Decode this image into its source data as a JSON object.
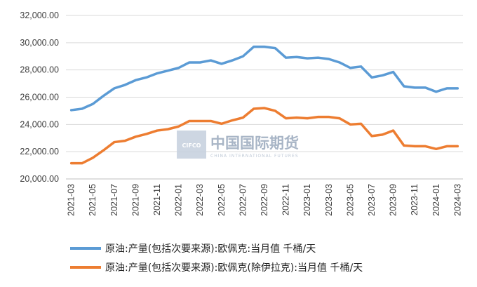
{
  "watermark": {
    "logo_text": "CIFCO",
    "name": "中国国际期货",
    "subtitle": "CHINA INTERNATIONAL FUTURES"
  },
  "chart_data": {
    "type": "line",
    "x": [
      "2021-03",
      "2021-04",
      "2021-05",
      "2021-06",
      "2021-07",
      "2021-08",
      "2021-09",
      "2021-10",
      "2021-11",
      "2021-12",
      "2022-01",
      "2022-02",
      "2022-03",
      "2022-04",
      "2022-05",
      "2022-06",
      "2022-07",
      "2022-08",
      "2022-09",
      "2022-10",
      "2022-11",
      "2022-12",
      "2023-01",
      "2023-02",
      "2023-03",
      "2023-04",
      "2023-05",
      "2023-06",
      "2023-07",
      "2023-08",
      "2023-09",
      "2023-10",
      "2023-11",
      "2023-12",
      "2024-01",
      "2024-02",
      "2024-03"
    ],
    "x_tick_labels": [
      "2021-03",
      "2021-05",
      "2021-07",
      "2021-09",
      "2021-11",
      "2022-01",
      "2022-03",
      "2022-05",
      "2022-07",
      "2022-09",
      "2022-11",
      "2023-01",
      "2023-03",
      "2023-05",
      "2023-07",
      "2023-09",
      "2023-11",
      "2024-01",
      "2024-03"
    ],
    "y_tick_labels": [
      "20,000.00",
      "22,000.00",
      "24,000.00",
      "26,000.00",
      "28,000.00",
      "30,000.00",
      "32,000.00"
    ],
    "ylim": [
      20000,
      32000
    ],
    "grid": true,
    "legend_position": "bottom",
    "series": [
      {
        "name": "原油:产量(包括次要来源):欧佩克:当月值 千桶/天",
        "color": "#5b9bd5",
        "values": [
          25050,
          25150,
          25500,
          26100,
          26650,
          26900,
          27250,
          27450,
          27750,
          27950,
          28150,
          28550,
          28550,
          28700,
          28450,
          28700,
          29000,
          29700,
          29700,
          29600,
          28900,
          28950,
          28850,
          28900,
          28800,
          28550,
          28150,
          28250,
          27450,
          27600,
          27850,
          26800,
          26700,
          26700,
          26400,
          26650,
          26650
        ]
      },
      {
        "name": "原油:产量(包括次要来源):欧佩克(除伊拉克):当月值 千桶/天",
        "color": "#ed7d31",
        "values": [
          21150,
          21150,
          21550,
          22100,
          22700,
          22800,
          23100,
          23300,
          23550,
          23650,
          23850,
          24250,
          24250,
          24250,
          24050,
          24300,
          24500,
          25150,
          25200,
          25000,
          24450,
          24500,
          24450,
          24550,
          24550,
          24450,
          24000,
          24050,
          23150,
          23250,
          23550,
          22450,
          22400,
          22400,
          22200,
          22400,
          22400
        ]
      }
    ]
  }
}
